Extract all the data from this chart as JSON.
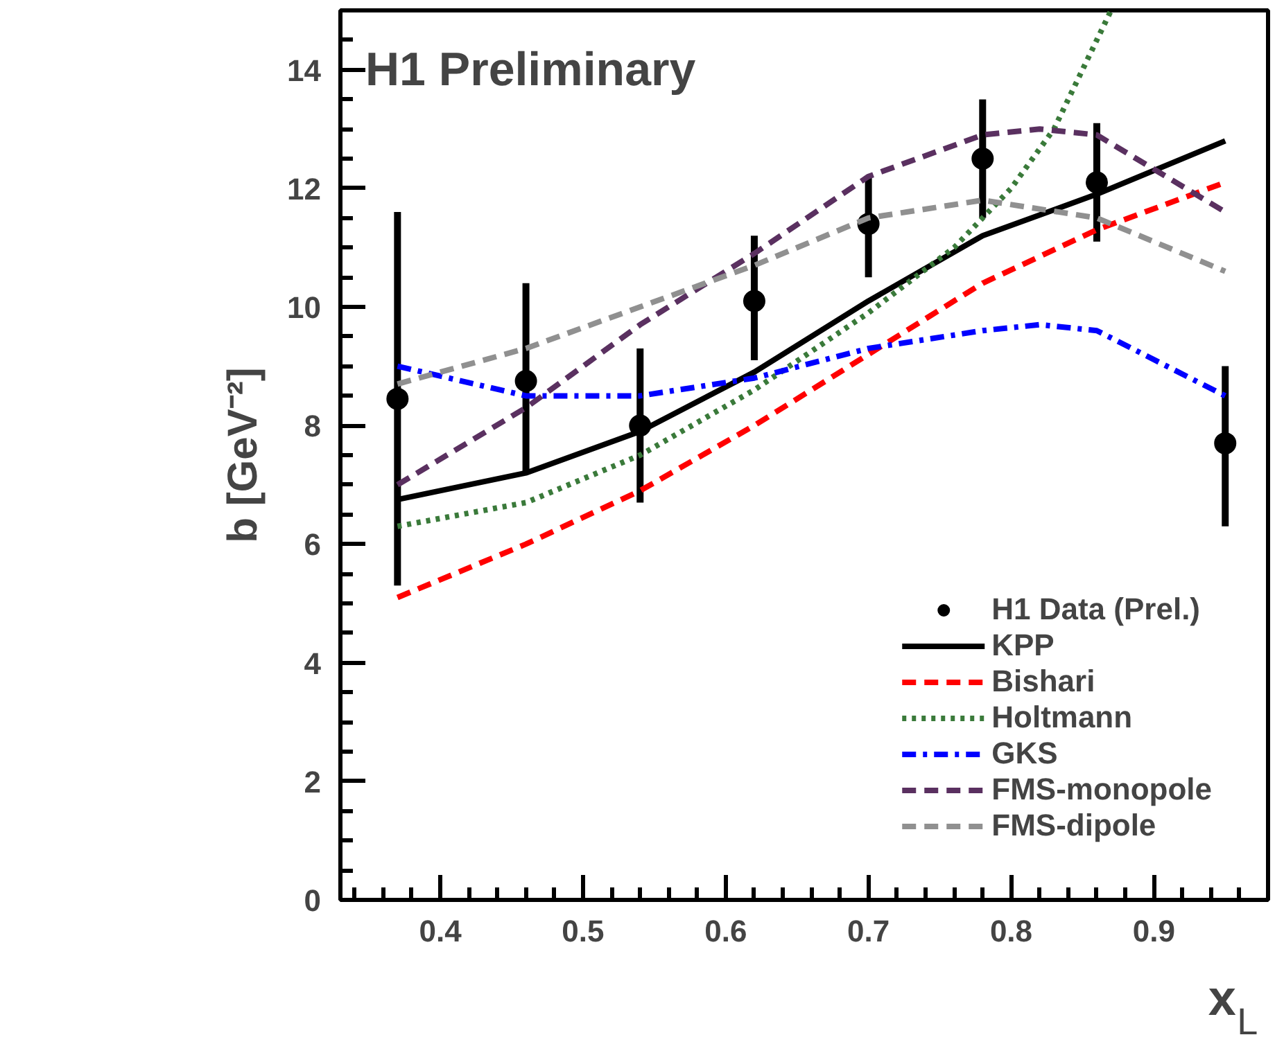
{
  "chart_data": {
    "type": "line",
    "title": "H1 Preliminary",
    "xlabel": "x$_{L}$",
    "ylabel": "b [GeV⁻²]",
    "xlim": [
      0.33,
      0.98
    ],
    "ylim": [
      0,
      15
    ],
    "xticks": [
      0.4,
      0.5,
      0.6,
      0.7,
      0.8,
      0.9
    ],
    "yticks": [
      0,
      2,
      4,
      6,
      8,
      10,
      12,
      14
    ],
    "grid": false,
    "legend": "bottom right",
    "series": [
      {
        "name": "H1 Data (Prel.)",
        "type": "scatter",
        "marker": "circle",
        "color": "#000000",
        "x": [
          0.37,
          0.46,
          0.54,
          0.62,
          0.7,
          0.78,
          0.86,
          0.95
        ],
        "values": [
          8.45,
          8.75,
          8.0,
          10.1,
          11.4,
          12.5,
          12.1,
          7.7
        ],
        "errors": [
          [
            5.3,
            11.6
          ],
          [
            7.2,
            10.4
          ],
          [
            6.7,
            9.3
          ],
          [
            9.1,
            11.2
          ],
          [
            10.5,
            12.2
          ],
          [
            11.5,
            13.5
          ],
          [
            11.1,
            13.1
          ],
          [
            6.3,
            9.0
          ]
        ]
      },
      {
        "name": "KPP",
        "line_style": "solid",
        "color": "#000000",
        "x": [
          0.37,
          0.46,
          0.54,
          0.62,
          0.7,
          0.78,
          0.86,
          0.95
        ],
        "values": [
          6.75,
          7.2,
          7.9,
          8.9,
          10.1,
          11.2,
          11.9,
          12.8
        ]
      },
      {
        "name": "Bishari",
        "line_style": "dashed",
        "color": "#ff0000",
        "x": [
          0.37,
          0.46,
          0.54,
          0.62,
          0.7,
          0.78,
          0.86,
          0.95
        ],
        "values": [
          5.1,
          6.0,
          6.9,
          8.0,
          9.2,
          10.4,
          11.3,
          12.1
        ]
      },
      {
        "name": "Holtmann",
        "line_style": "dotted",
        "color": "#3a7a3a",
        "x": [
          0.37,
          0.46,
          0.54,
          0.62,
          0.7,
          0.76,
          0.8,
          0.83,
          0.85,
          0.87
        ],
        "values": [
          6.3,
          6.7,
          7.5,
          8.6,
          9.9,
          11.0,
          12.0,
          13.0,
          14.0,
          15.0
        ]
      },
      {
        "name": "GKS",
        "line_style": "dashdot",
        "color": "#0000ff",
        "x": [
          0.37,
          0.46,
          0.54,
          0.62,
          0.7,
          0.78,
          0.82,
          0.86,
          0.95
        ],
        "values": [
          9.0,
          8.5,
          8.5,
          8.8,
          9.3,
          9.6,
          9.7,
          9.6,
          8.5
        ]
      },
      {
        "name": "FMS-monopole",
        "line_style": "dashed",
        "color": "#5a3060",
        "x": [
          0.37,
          0.46,
          0.54,
          0.62,
          0.7,
          0.78,
          0.82,
          0.86,
          0.95
        ],
        "values": [
          7.0,
          8.3,
          9.7,
          10.9,
          12.2,
          12.9,
          13.0,
          12.9,
          11.6
        ]
      },
      {
        "name": "FMS-dipole",
        "line_style": "dashed",
        "color": "#909090",
        "x": [
          0.37,
          0.46,
          0.54,
          0.62,
          0.7,
          0.78,
          0.86,
          0.95
        ],
        "values": [
          8.7,
          9.3,
          10.0,
          10.7,
          11.5,
          11.8,
          11.5,
          10.6
        ]
      }
    ]
  }
}
